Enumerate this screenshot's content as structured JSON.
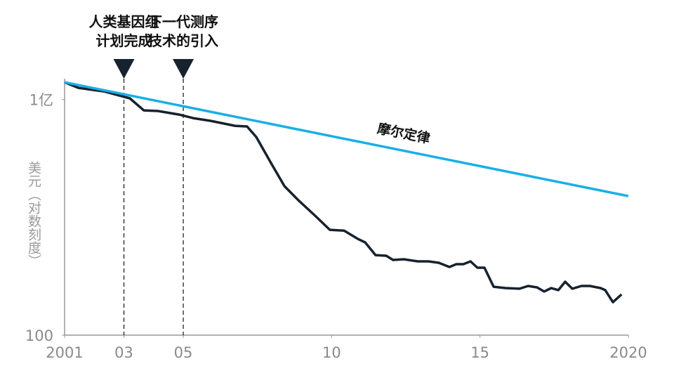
{
  "chart_data": {
    "type": "line",
    "x_label": null,
    "y_label": "美元（对数刻度）",
    "log_y": true,
    "grid": false,
    "xlim": [
      2001,
      2020
    ],
    "ylim": [
      100,
      300000000
    ],
    "xticks": [
      2001,
      {
        "value": 2003,
        "label": "03"
      },
      {
        "value": 2005,
        "label": "05"
      },
      {
        "value": 2010,
        "label": "10"
      },
      {
        "value": 2015,
        "label": "15"
      },
      2020
    ],
    "yticks": [
      {
        "value": 100000000,
        "label": "1亿"
      },
      100
    ],
    "series": [
      {
        "color": "#16222e",
        "x": [
          2001.0,
          2001.47,
          2002.33,
          2003.2,
          2003.67,
          2004.15,
          2004.86,
          2005.33,
          2005.92,
          2006.75,
          2007.15,
          2007.46,
          2007.93,
          2008.41,
          2008.88,
          2009.47,
          2009.94,
          2010.42,
          2010.89,
          2011.13,
          2011.48,
          2011.84,
          2012.07,
          2012.43,
          2012.9,
          2013.26,
          2013.61,
          2013.97,
          2014.2,
          2014.44,
          2014.68,
          2014.91,
          2015.15,
          2015.46,
          2015.86,
          2016.33,
          2016.62,
          2016.92,
          2017.16,
          2017.4,
          2017.64,
          2017.87,
          2018.11,
          2018.42,
          2018.7,
          2019.06,
          2019.22,
          2019.48,
          2019.77
        ],
        "values": [
          275000000,
          198000000,
          161000000,
          107000000,
          53000000,
          51000000,
          41400000,
          33700000,
          28600000,
          21400000,
          20600000,
          11100000,
          2620000,
          620000,
          272000,
          105000,
          48000,
          46000,
          28000,
          23000,
          10900,
          10500,
          8200,
          8550,
          7550,
          7550,
          6960,
          5430,
          6410,
          6410,
          7550,
          5220,
          5220,
          1710,
          1580,
          1520,
          1790,
          1650,
          1290,
          1580,
          1400,
          2290,
          1520,
          1790,
          1790,
          1580,
          1400,
          690,
          1090
        ]
      },
      {
        "name": "摩尔定律",
        "color": "#1aaee6",
        "x": [
          2001,
          2020
        ],
        "values": [
          275000000,
          348000
        ]
      }
    ],
    "annotations": [
      {
        "x": 2003,
        "label": [
          "人类基因组",
          "计划完成"
        ]
      },
      {
        "x": 2005,
        "label": [
          "下一代测序",
          "技术的引入"
        ]
      }
    ]
  }
}
